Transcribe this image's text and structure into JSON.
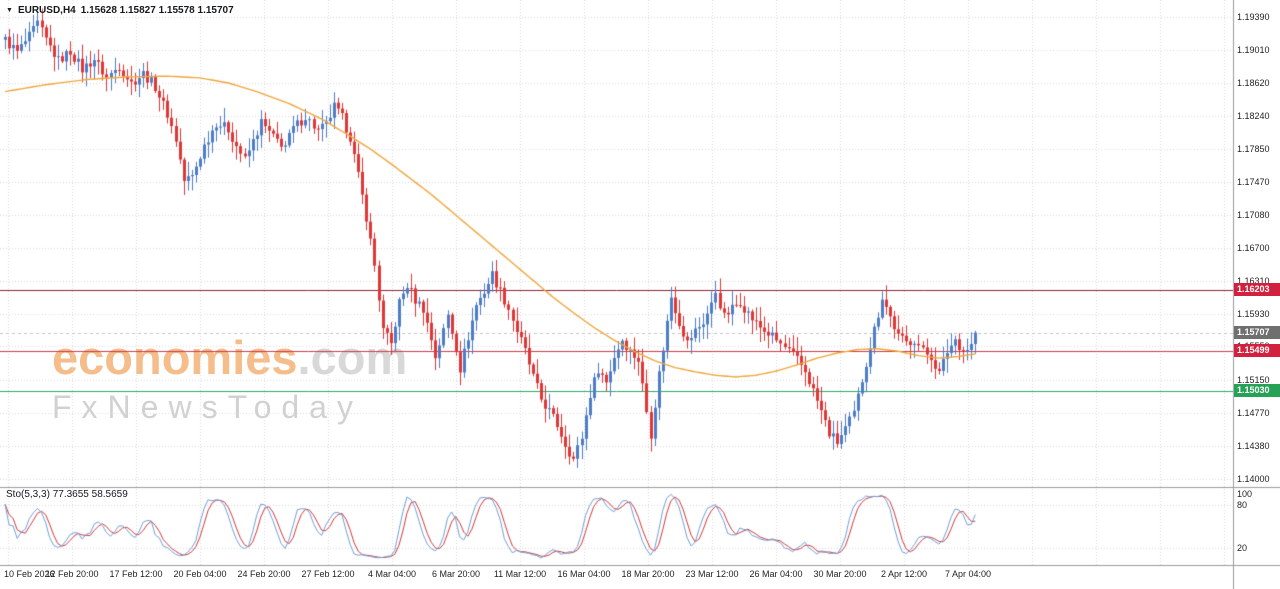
{
  "header": {
    "symbol": "EURUSD,H4",
    "ohlc": "1.15628 1.15827 1.15578 1.15707"
  },
  "watermark": {
    "brand": "economies",
    "domain": ".com",
    "tagline": "FxNewsToday"
  },
  "indicator": {
    "label": "Sto(5,3,3)",
    "values": "77.3655 58.5659"
  },
  "chart_data": {
    "type": "candlestick",
    "symbol": "EURUSD",
    "timeframe": "H4",
    "current": {
      "open": 1.15628,
      "high": 1.15827,
      "low": 1.15578,
      "close": 1.15707
    },
    "y_axis": {
      "min": 1.14,
      "max": 1.1939,
      "tick_labels": [
        "1.19390",
        "1.19010",
        "1.18620",
        "1.18240",
        "1.17850",
        "1.17470",
        "1.17080",
        "1.16700",
        "1.16310",
        "1.15930",
        "1.15550",
        "1.15150",
        "1.14770",
        "1.14380",
        "1.14000"
      ]
    },
    "x_axis": {
      "tick_labels": [
        "10 Feb 2026",
        "12 Feb 20:00",
        "17 Feb 12:00",
        "20 Feb 04:00",
        "24 Feb 20:00",
        "27 Feb 12:00",
        "4 Mar 04:00",
        "6 Mar 20:00",
        "11 Mar 12:00",
        "16 Mar 04:00",
        "18 Mar 20:00",
        "23 Mar 12:00",
        "26 Mar 04:00",
        "30 Mar 20:00",
        "2 Apr 12:00",
        "7 Apr 04:00"
      ]
    },
    "num_candles": 240,
    "close_anchors": [
      [
        0,
        1.1912
      ],
      [
        3,
        1.1898
      ],
      [
        6,
        1.1916
      ],
      [
        8,
        1.1931
      ],
      [
        10,
        1.1912
      ],
      [
        13,
        1.1888
      ],
      [
        16,
        1.1899
      ],
      [
        19,
        1.1878
      ],
      [
        22,
        1.189
      ],
      [
        25,
        1.1868
      ],
      [
        28,
        1.1882
      ],
      [
        31,
        1.1862
      ],
      [
        34,
        1.1873
      ],
      [
        37,
        1.1858
      ],
      [
        40,
        1.1826
      ],
      [
        42,
        1.1796
      ],
      [
        44,
        1.1748
      ],
      [
        46,
        1.1753
      ],
      [
        49,
        1.1789
      ],
      [
        52,
        1.1816
      ],
      [
        55,
        1.1808
      ],
      [
        57,
        1.1789
      ],
      [
        59,
        1.1772
      ],
      [
        61,
        1.1794
      ],
      [
        63,
        1.1816
      ],
      [
        66,
        1.1798
      ],
      [
        69,
        1.1789
      ],
      [
        71,
        1.1809
      ],
      [
        74,
        1.1823
      ],
      [
        77,
        1.1806
      ],
      [
        79,
        1.1813
      ],
      [
        81,
        1.1834
      ],
      [
        83,
        1.1821
      ],
      [
        85,
        1.1799
      ],
      [
        87,
        1.1753
      ],
      [
        89,
        1.1706
      ],
      [
        91,
        1.1649
      ],
      [
        93,
        1.1573
      ],
      [
        95,
        1.1557
      ],
      [
        97,
        1.1606
      ],
      [
        99,
        1.1626
      ],
      [
        101,
        1.1609
      ],
      [
        103,
        1.1599
      ],
      [
        105,
        1.1563
      ],
      [
        106,
        1.1543
      ],
      [
        108,
        1.1573
      ],
      [
        109,
        1.1591
      ],
      [
        111,
        1.1553
      ],
      [
        112,
        1.1529
      ],
      [
        114,
        1.1566
      ],
      [
        116,
        1.1603
      ],
      [
        118,
        1.1619
      ],
      [
        120,
        1.1639
      ],
      [
        122,
        1.1619
      ],
      [
        124,
        1.1599
      ],
      [
        126,
        1.1573
      ],
      [
        128,
        1.1549
      ],
      [
        130,
        1.1519
      ],
      [
        132,
        1.1493
      ],
      [
        134,
        1.1479
      ],
      [
        136,
        1.1463
      ],
      [
        138,
        1.1441
      ],
      [
        140,
        1.1423
      ],
      [
        142,
        1.1449
      ],
      [
        144,
        1.1499
      ],
      [
        146,
        1.1529
      ],
      [
        148,
        1.1513
      ],
      [
        150,
        1.1543
      ],
      [
        152,
        1.1563
      ],
      [
        154,
        1.1549
      ],
      [
        156,
        1.1539
      ],
      [
        158,
        1.1479
      ],
      [
        159,
        1.1453
      ],
      [
        161,
        1.1523
      ],
      [
        163,
        1.1583
      ],
      [
        164,
        1.1613
      ],
      [
        166,
        1.1583
      ],
      [
        168,
        1.1559
      ],
      [
        170,
        1.1573
      ],
      [
        172,
        1.1583
      ],
      [
        174,
        1.1603
      ],
      [
        175,
        1.1619
      ],
      [
        177,
        1.1589
      ],
      [
        179,
        1.1599
      ],
      [
        181,
        1.1607
      ],
      [
        183,
        1.1593
      ],
      [
        185,
        1.1581
      ],
      [
        187,
        1.1573
      ],
      [
        189,
        1.1566
      ],
      [
        191,
        1.1557
      ],
      [
        193,
        1.1549
      ],
      [
        195,
        1.1539
      ],
      [
        197,
        1.1526
      ],
      [
        199,
        1.1503
      ],
      [
        201,
        1.1479
      ],
      [
        203,
        1.1453
      ],
      [
        205,
        1.1443
      ],
      [
        207,
        1.1459
      ],
      [
        209,
        1.1476
      ],
      [
        211,
        1.1516
      ],
      [
        213,
        1.1556
      ],
      [
        215,
        1.1593
      ],
      [
        216,
        1.1613
      ],
      [
        218,
        1.1589
      ],
      [
        220,
        1.1566
      ],
      [
        222,
        1.1559
      ],
      [
        224,
        1.1563
      ],
      [
        226,
        1.1549
      ],
      [
        228,
        1.1543
      ],
      [
        230,
        1.1523
      ],
      [
        232,
        1.1549
      ],
      [
        234,
        1.1563
      ],
      [
        236,
        1.1549
      ],
      [
        238,
        1.1556
      ],
      [
        239,
        1.15707
      ]
    ],
    "ma_anchors": [
      [
        0,
        1.1852
      ],
      [
        10,
        1.186
      ],
      [
        20,
        1.1866
      ],
      [
        30,
        1.1869
      ],
      [
        40,
        1.187
      ],
      [
        48,
        1.1868
      ],
      [
        55,
        1.1862
      ],
      [
        62,
        1.1852
      ],
      [
        70,
        1.1838
      ],
      [
        78,
        1.182
      ],
      [
        85,
        1.18
      ],
      [
        90,
        1.1785
      ],
      [
        95,
        1.1768
      ],
      [
        100,
        1.175
      ],
      [
        105,
        1.1732
      ],
      [
        110,
        1.1712
      ],
      [
        115,
        1.1692
      ],
      [
        120,
        1.1672
      ],
      [
        125,
        1.1652
      ],
      [
        130,
        1.1632
      ],
      [
        135,
        1.1612
      ],
      [
        140,
        1.1594
      ],
      [
        145,
        1.1577
      ],
      [
        150,
        1.1562
      ],
      [
        155,
        1.1549
      ],
      [
        160,
        1.1538
      ],
      [
        165,
        1.153
      ],
      [
        170,
        1.1525
      ],
      [
        175,
        1.1521
      ],
      [
        180,
        1.1519
      ],
      [
        185,
        1.1521
      ],
      [
        190,
        1.1526
      ],
      [
        195,
        1.1533
      ],
      [
        200,
        1.1541
      ],
      [
        205,
        1.1547
      ],
      [
        210,
        1.1551
      ],
      [
        215,
        1.1552
      ],
      [
        220,
        1.1549
      ],
      [
        225,
        1.1544
      ],
      [
        230,
        1.1541
      ],
      [
        235,
        1.1543
      ],
      [
        239,
        1.1546
      ]
    ],
    "hlines": [
      {
        "price": 1.16203,
        "label": "1.16203",
        "line_color": "#8b2438",
        "tag_color": "#d2213e"
      },
      {
        "price": 1.15499,
        "label": "1.15499",
        "line_color": "#cc3b49",
        "tag_color": "#d2213e"
      },
      {
        "price": 1.1503,
        "label": "1.15030",
        "line_color": "#2fa763",
        "tag_color": "#27a155"
      }
    ],
    "current_price": 1.15707,
    "current_price_label": "1.15707",
    "current_tag_color": "#6f6f6f",
    "colors": {
      "up": "#4e7dc8",
      "down": "#e03636",
      "ma": "#efa63c",
      "grid": "#d9d9d9",
      "separator": "#9b9b9b"
    },
    "stochastic": {
      "label": "Sto(5,3,3)",
      "k_period": 5,
      "d_period": 3,
      "slowing": 3,
      "current_k": 77.3655,
      "current_d": 58.5659,
      "axis_labels": [
        "100",
        "80",
        "20"
      ],
      "levels": [
        20,
        80
      ],
      "k_color": "#6f9fd8",
      "d_color": "#cf3a3a",
      "range": [
        0,
        100
      ]
    }
  }
}
